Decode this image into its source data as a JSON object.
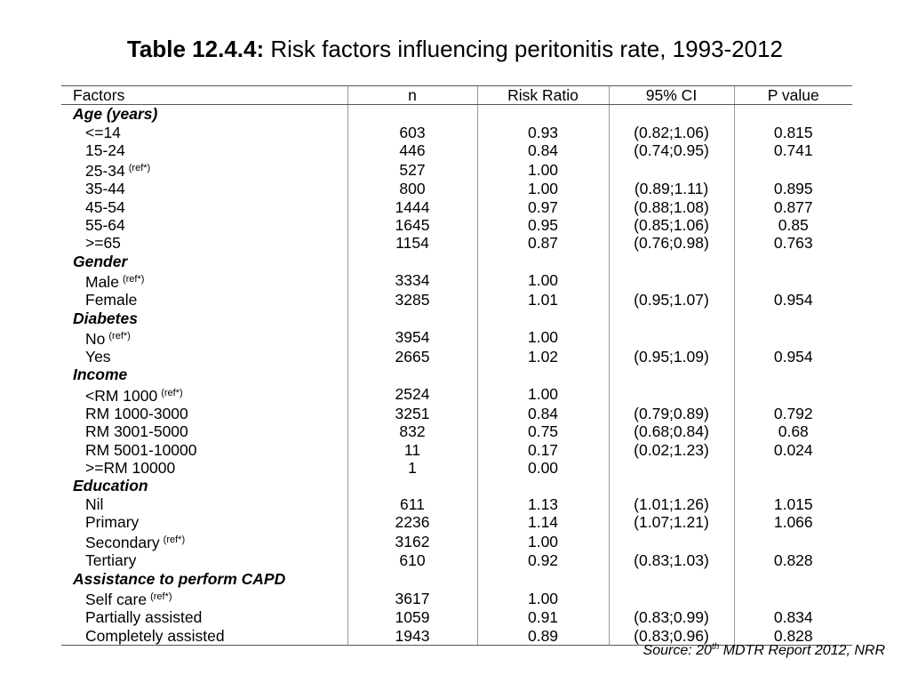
{
  "title": {
    "label": "Table 12.4.4:",
    "text": "Risk factors influencing peritonitis rate, 1993-2012"
  },
  "table": {
    "headers": [
      "Factors",
      "n",
      "Risk Ratio",
      "95% CI",
      "P value"
    ],
    "rows": [
      {
        "type": "group",
        "label": "Age (years)"
      },
      {
        "type": "data",
        "factor": "<=14",
        "n": "603",
        "rr": "0.93",
        "ci": "(0.82;1.06)",
        "p": "0.815"
      },
      {
        "type": "data",
        "factor": "15-24",
        "n": "446",
        "rr": "0.84",
        "ci": "(0.74;0.95)",
        "p": "0.741"
      },
      {
        "type": "data",
        "factor": "25-34",
        "ref": "(ref*)",
        "n": "527",
        "rr": "1.00",
        "ci": "",
        "p": ""
      },
      {
        "type": "data",
        "factor": "35-44",
        "n": "800",
        "rr": "1.00",
        "ci": "(0.89;1.11)",
        "p": "0.895"
      },
      {
        "type": "data",
        "factor": "45-54",
        "n": "1444",
        "rr": "0.97",
        "ci": "(0.88;1.08)",
        "p": "0.877"
      },
      {
        "type": "data",
        "factor": "55-64",
        "n": "1645",
        "rr": "0.95",
        "ci": "(0.85;1.06)",
        "p": "0.85"
      },
      {
        "type": "data",
        "factor": ">=65",
        "n": "1154",
        "rr": "0.87",
        "ci": "(0.76;0.98)",
        "p": "0.763"
      },
      {
        "type": "group",
        "label": "Gender"
      },
      {
        "type": "data",
        "factor": "Male",
        "ref": "(ref*)",
        "n": "3334",
        "rr": "1.00",
        "ci": "",
        "p": ""
      },
      {
        "type": "data",
        "factor": "Female",
        "n": "3285",
        "rr": "1.01",
        "ci": "(0.95;1.07)",
        "p": "0.954"
      },
      {
        "type": "group",
        "label": "Diabetes"
      },
      {
        "type": "data",
        "factor": "No",
        "ref": "(ref*)",
        "n": "3954",
        "rr": "1.00",
        "ci": "",
        "p": ""
      },
      {
        "type": "data",
        "factor": "Yes",
        "n": "2665",
        "rr": "1.02",
        "ci": "(0.95;1.09)",
        "p": "0.954"
      },
      {
        "type": "group",
        "label": "Income"
      },
      {
        "type": "data",
        "factor": "<RM 1000",
        "ref": "(ref*)",
        "n": "2524",
        "rr": "1.00",
        "ci": "",
        "p": ""
      },
      {
        "type": "data",
        "factor": "RM 1000-3000",
        "n": "3251",
        "rr": "0.84",
        "ci": "(0.79;0.89)",
        "p": "0.792"
      },
      {
        "type": "data",
        "factor": "RM 3001-5000",
        "n": "832",
        "rr": "0.75",
        "ci": "(0.68;0.84)",
        "p": "0.68"
      },
      {
        "type": "data",
        "factor": "RM 5001-10000",
        "n": "11",
        "rr": "0.17",
        "ci": "(0.02;1.23)",
        "p": "0.024"
      },
      {
        "type": "data",
        "factor": ">=RM 10000",
        "n": "1",
        "rr": "0.00",
        "ci": "",
        "p": ""
      },
      {
        "type": "group",
        "label": "Education"
      },
      {
        "type": "data",
        "factor": "Nil",
        "n": "611",
        "rr": "1.13",
        "ci": "(1.01;1.26)",
        "p": "1.015"
      },
      {
        "type": "data",
        "factor": "Primary",
        "n": "2236",
        "rr": "1.14",
        "ci": "(1.07;1.21)",
        "p": "1.066"
      },
      {
        "type": "data",
        "factor": "Secondary",
        "ref": "(ref*)",
        "n": "3162",
        "rr": "1.00",
        "ci": "",
        "p": ""
      },
      {
        "type": "data",
        "factor": "Tertiary",
        "n": "610",
        "rr": "0.92",
        "ci": "(0.83;1.03)",
        "p": "0.828"
      },
      {
        "type": "group",
        "label": "Assistance to perform CAPD"
      },
      {
        "type": "data",
        "factor": "Self care",
        "ref": "(ref*)",
        "n": "3617",
        "rr": "1.00",
        "ci": "",
        "p": ""
      },
      {
        "type": "data",
        "factor": "Partially assisted",
        "n": "1059",
        "rr": "0.91",
        "ci": "(0.83;0.99)",
        "p": "0.834"
      },
      {
        "type": "data",
        "factor": "Completely assisted",
        "n": "1943",
        "rr": "0.89",
        "ci": "(0.83;0.96)",
        "p": "0.828"
      }
    ]
  },
  "source": {
    "prefix": "Source: 20",
    "sup": "th",
    "suffix": " MDTR Report 2012, NRR"
  }
}
